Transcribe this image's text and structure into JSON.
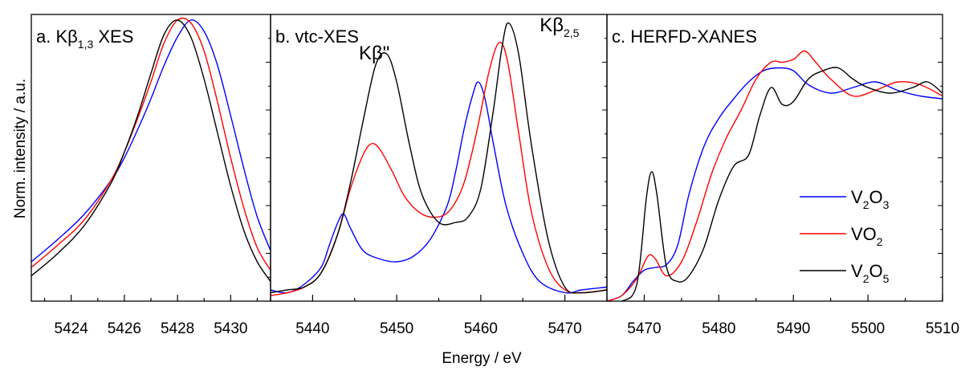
{
  "figure": {
    "ylabel": "Norm. intensity / a.u.",
    "xlabel": "Energy / eV",
    "legend": {
      "placement": "right of panel c",
      "entries": [
        {
          "base": "V",
          "sub1": "2",
          "mid": "O",
          "sub2": "3",
          "color": "#0000ff"
        },
        {
          "base": "VO",
          "sub1": "2",
          "mid": "",
          "sub2": "",
          "color": "#ff0000"
        },
        {
          "base": "V",
          "sub1": "2",
          "mid": "O",
          "sub2": "5",
          "color": "#000000"
        }
      ]
    }
  },
  "chart_data": [
    {
      "type": "line",
      "title": {
        "prefix": "a. Kβ",
        "sub": "1,3",
        "suffix": " XES"
      },
      "xlim": [
        5422.5,
        5431.5
      ],
      "ylim": [
        0,
        1.02
      ],
      "xticks": [
        5424,
        5426,
        5428,
        5430
      ],
      "annotations": [],
      "series": [
        {
          "name": "V2O3",
          "color": "#0000ff",
          "x": [
            5422.5,
            5423.5,
            5424.5,
            5425.5,
            5426,
            5426.5,
            5427,
            5427.5,
            5428,
            5428.5,
            5429,
            5429.5,
            5430,
            5430.5,
            5431,
            5431.5
          ],
          "y": [
            0.14,
            0.22,
            0.31,
            0.43,
            0.51,
            0.61,
            0.72,
            0.84,
            0.94,
            1.0,
            0.96,
            0.84,
            0.66,
            0.47,
            0.3,
            0.18
          ]
        },
        {
          "name": "VO2",
          "color": "#ff0000",
          "x": [
            5422.5,
            5423.5,
            5424.5,
            5425.5,
            5426,
            5426.5,
            5427,
            5427.5,
            5428,
            5428.5,
            5429,
            5429.5,
            5430,
            5430.5,
            5431,
            5431.5
          ],
          "y": [
            0.12,
            0.2,
            0.29,
            0.43,
            0.53,
            0.65,
            0.78,
            0.92,
            1.0,
            0.99,
            0.89,
            0.71,
            0.51,
            0.33,
            0.19,
            0.11
          ]
        },
        {
          "name": "V2O5",
          "color": "#000000",
          "x": [
            5422.5,
            5423.5,
            5424.5,
            5425.5,
            5426,
            5426.5,
            5427,
            5427.5,
            5428,
            5428.5,
            5429,
            5429.5,
            5430,
            5430.5,
            5431,
            5431.5
          ],
          "y": [
            0.09,
            0.17,
            0.27,
            0.42,
            0.53,
            0.66,
            0.81,
            0.95,
            1.0,
            0.94,
            0.79,
            0.6,
            0.41,
            0.25,
            0.14,
            0.07
          ]
        }
      ]
    },
    {
      "type": "line",
      "title": {
        "prefix": "b. vtc-XES",
        "sub": "",
        "suffix": ""
      },
      "xlim": [
        5435,
        5475
      ],
      "ylim": [
        0,
        1.02
      ],
      "xticks": [
        5440,
        5450,
        5460,
        5470
      ],
      "annotations": [
        {
          "prefix": "Kβ\"",
          "sub": "",
          "x": 5445.5,
          "y": 0.86
        },
        {
          "prefix": "Kβ",
          "sub": "2,5",
          "x": 5467,
          "y": 0.96
        }
      ],
      "series": [
        {
          "name": "V2O3",
          "color": "#0000ff",
          "x": [
            5435,
            5437,
            5439,
            5441,
            5442,
            5443,
            5443.7,
            5444.5,
            5446,
            5448,
            5450,
            5452,
            5454,
            5456,
            5457,
            5458,
            5459,
            5459.7,
            5460.5,
            5461.5,
            5463,
            5465,
            5467,
            5470,
            5472,
            5475
          ],
          "y": [
            0.04,
            0.03,
            0.06,
            0.12,
            0.2,
            0.28,
            0.31,
            0.26,
            0.18,
            0.15,
            0.14,
            0.16,
            0.22,
            0.34,
            0.46,
            0.61,
            0.73,
            0.78,
            0.72,
            0.56,
            0.34,
            0.17,
            0.07,
            0.03,
            0.04,
            0.05
          ]
        },
        {
          "name": "VO2",
          "color": "#ff0000",
          "x": [
            5435,
            5437,
            5439,
            5441,
            5443,
            5444.5,
            5446,
            5447,
            5448,
            5449.5,
            5451,
            5453,
            5455,
            5456.5,
            5458,
            5459.5,
            5461,
            5462.2,
            5463.2,
            5464.5,
            5466,
            5468,
            5470,
            5472,
            5475
          ],
          "y": [
            0.02,
            0.03,
            0.05,
            0.1,
            0.24,
            0.4,
            0.52,
            0.56,
            0.54,
            0.46,
            0.37,
            0.31,
            0.3,
            0.33,
            0.42,
            0.6,
            0.82,
            0.92,
            0.85,
            0.6,
            0.32,
            0.12,
            0.04,
            0.03,
            0.04
          ]
        },
        {
          "name": "V2O5",
          "color": "#000000",
          "x": [
            5435,
            5437,
            5439,
            5441,
            5443,
            5444.5,
            5446,
            5447.5,
            5448.8,
            5450,
            5451.5,
            5453,
            5455,
            5457,
            5458.5,
            5460,
            5461.5,
            5462.5,
            5463.3,
            5464.5,
            5466,
            5468,
            5470,
            5472,
            5475
          ],
          "y": [
            0.03,
            0.04,
            0.05,
            0.1,
            0.24,
            0.42,
            0.64,
            0.84,
            0.88,
            0.78,
            0.56,
            0.38,
            0.28,
            0.28,
            0.3,
            0.4,
            0.68,
            0.9,
            0.99,
            0.88,
            0.56,
            0.22,
            0.05,
            0.03,
            0.04
          ]
        }
      ]
    },
    {
      "type": "line",
      "title": {
        "prefix": "c. HERFD-XANES",
        "sub": "",
        "suffix": ""
      },
      "xlim": [
        5465,
        5510
      ],
      "ylim": [
        0,
        1.02
      ],
      "xticks": [
        5470,
        5480,
        5490,
        5500,
        5510
      ],
      "annotations": [],
      "series": [
        {
          "name": "V2O3",
          "color": "#0000ff",
          "x": [
            5465,
            5467,
            5468.5,
            5470,
            5471.5,
            5473,
            5474.5,
            5476,
            5478,
            5480,
            5482,
            5484,
            5486,
            5488,
            5490,
            5492,
            5495,
            5498,
            5501,
            5504,
            5507,
            5510
          ],
          "y": [
            0.0,
            0.02,
            0.07,
            0.11,
            0.12,
            0.13,
            0.2,
            0.38,
            0.55,
            0.65,
            0.72,
            0.78,
            0.82,
            0.83,
            0.82,
            0.77,
            0.74,
            0.76,
            0.78,
            0.75,
            0.73,
            0.72
          ]
        },
        {
          "name": "VO2",
          "color": "#ff0000",
          "x": [
            5465,
            5467,
            5469,
            5470.5,
            5471.5,
            5473,
            5475,
            5477,
            5479,
            5481,
            5483,
            5485,
            5487,
            5488.5,
            5490,
            5491.5,
            5493,
            5495,
            5498,
            5501,
            5504,
            5507,
            5510
          ],
          "y": [
            0.0,
            0.02,
            0.08,
            0.16,
            0.15,
            0.09,
            0.14,
            0.28,
            0.45,
            0.58,
            0.68,
            0.79,
            0.85,
            0.85,
            0.86,
            0.89,
            0.85,
            0.79,
            0.73,
            0.75,
            0.78,
            0.77,
            0.73
          ]
        },
        {
          "name": "V2O5",
          "color": "#000000",
          "x": [
            5465,
            5467,
            5469,
            5470.3,
            5471,
            5471.7,
            5473,
            5474.5,
            5476,
            5478,
            5480,
            5482,
            5484,
            5485.5,
            5487,
            5488.5,
            5490,
            5492,
            5494,
            5496,
            5498,
            5500,
            5503,
            5506,
            5508,
            5510
          ],
          "y": [
            0.0,
            0.0,
            0.06,
            0.37,
            0.46,
            0.38,
            0.12,
            0.07,
            0.09,
            0.19,
            0.36,
            0.48,
            0.52,
            0.66,
            0.76,
            0.7,
            0.71,
            0.79,
            0.82,
            0.83,
            0.79,
            0.76,
            0.74,
            0.76,
            0.78,
            0.74
          ]
        }
      ]
    }
  ]
}
